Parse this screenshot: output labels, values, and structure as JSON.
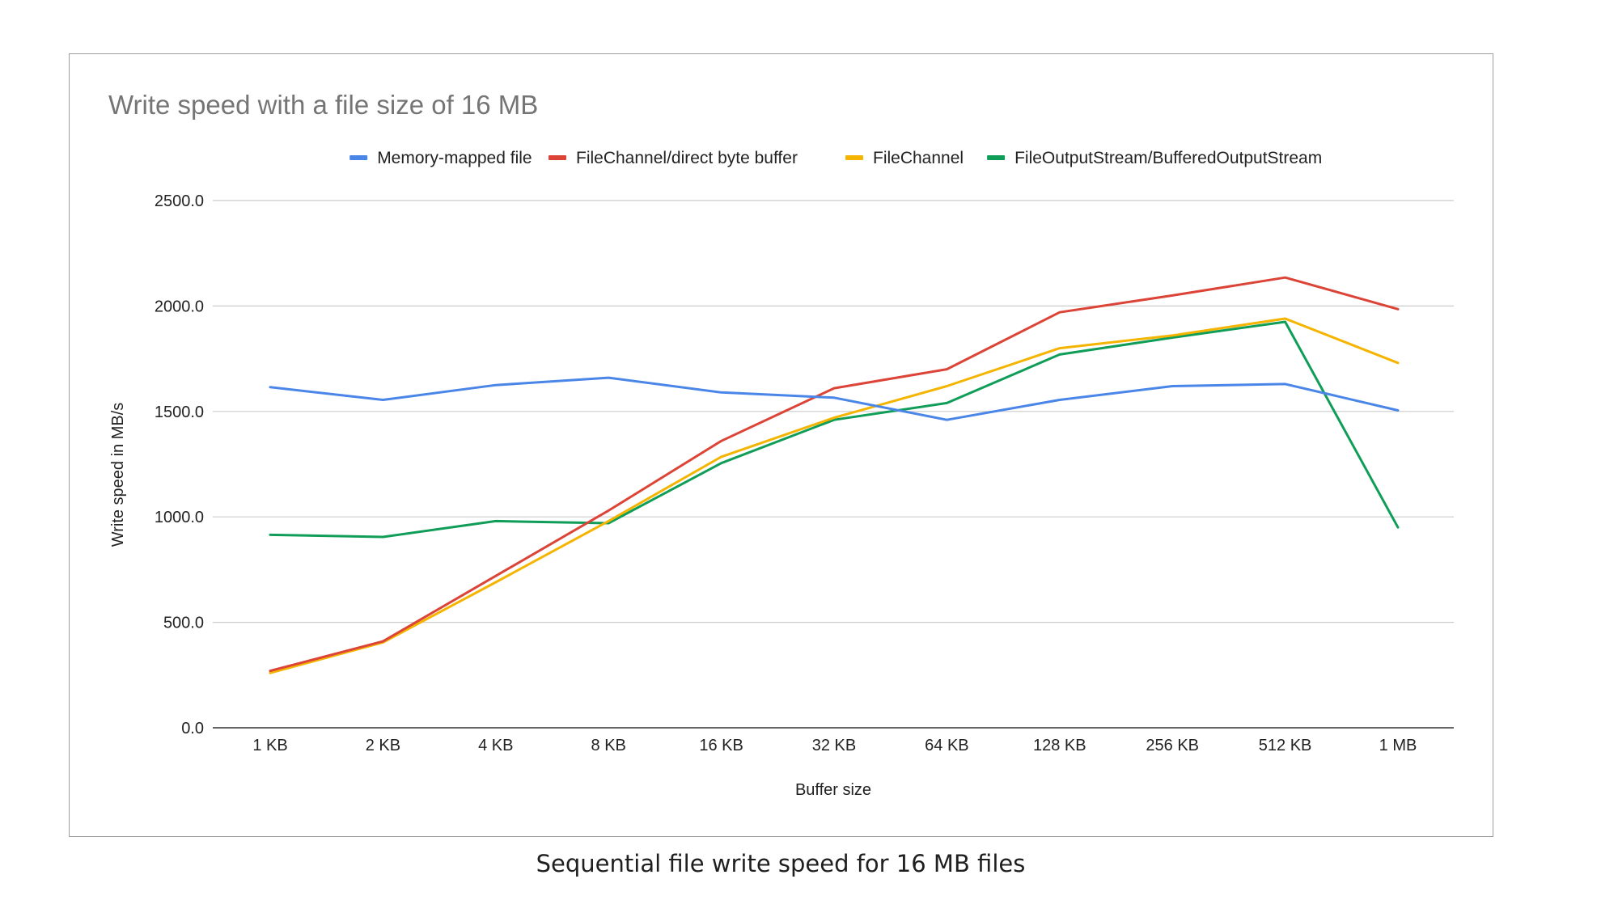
{
  "caption": "Sequential file write speed for 16 MB files",
  "chart_data": {
    "type": "line",
    "title": "Write speed with a file size of 16 MB",
    "xlabel": "Buffer size",
    "ylabel": "Write speed in MB/s",
    "categories": [
      "1 KB",
      "2 KB",
      "4 KB",
      "8 KB",
      "16 KB",
      "32 KB",
      "64 KB",
      "128 KB",
      "256 KB",
      "512 KB",
      "1 MB"
    ],
    "ylim": [
      0,
      2500
    ],
    "yticks": [
      "0.0",
      "500.0",
      "1000.0",
      "1500.0",
      "2000.0",
      "2500.0"
    ],
    "grid": true,
    "legend_position": "top",
    "series": [
      {
        "name": "Memory-mapped file",
        "color": "#4a86e8",
        "values": [
          1615,
          1555,
          1625,
          1660,
          1590,
          1565,
          1460,
          1555,
          1620,
          1630,
          1505
        ]
      },
      {
        "name": "FileChannel/direct byte buffer",
        "color": "#db4437",
        "values": [
          270,
          410,
          720,
          1030,
          1360,
          1610,
          1700,
          1970,
          2050,
          2135,
          1985
        ]
      },
      {
        "name": "FileChannel",
        "color": "#f4b400",
        "values": [
          260,
          405,
          690,
          980,
          1285,
          1470,
          1620,
          1800,
          1860,
          1940,
          1730
        ]
      },
      {
        "name": "FileOutputStream/BufferedOutputStream",
        "color": "#0f9d58",
        "values": [
          915,
          905,
          980,
          970,
          1255,
          1460,
          1540,
          1770,
          1850,
          1925,
          950
        ]
      }
    ]
  }
}
